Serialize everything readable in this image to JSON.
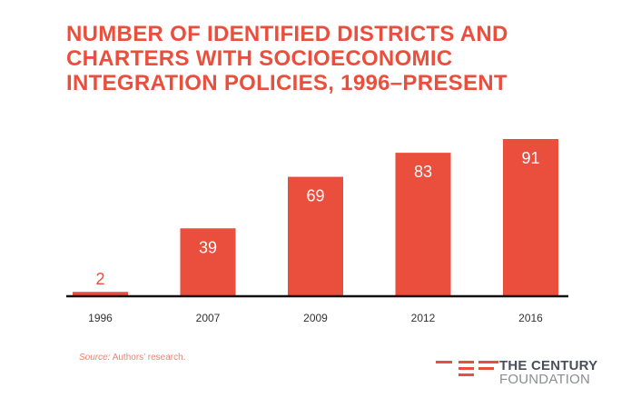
{
  "chart_data": {
    "type": "bar",
    "title": "NUMBER OF IDENTIFIED DISTRICTS AND CHARTERS WITH SOCIOECONOMIC INTEGRATION POLICIES, 1996–PRESENT",
    "categories": [
      "1996",
      "2007",
      "2009",
      "2012",
      "2016"
    ],
    "values": [
      2,
      39,
      69,
      83,
      91
    ],
    "value_labels": [
      "2",
      "39",
      "69",
      "83",
      "91"
    ],
    "xlabel": "",
    "ylabel": "",
    "ylim": [
      0,
      91
    ],
    "grid": false,
    "bar_color": "#EA4E3C"
  },
  "source": {
    "label": "Source:",
    "text": " Authors’ research."
  },
  "logo": {
    "line1": "THE CENTURY",
    "line2": "FOUNDATION"
  }
}
